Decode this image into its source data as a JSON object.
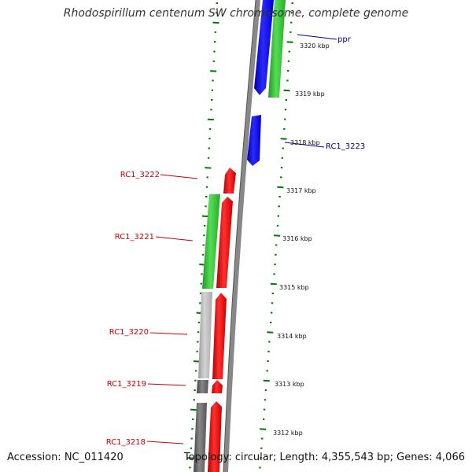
{
  "title": "Rhodospirillum centenum SW chromosome, complete genome",
  "accession": "Accession: NC_011420",
  "topology": "Topology: circular; Length: 4,355,543 bp; Genes: 4,066",
  "colors": {
    "forward_gene": "#ff0000",
    "reverse_gene": "#0000ff",
    "cds_green": "#33cc33",
    "cds_grey": "#bbbbbb",
    "cds_dark": "#666666",
    "backbone": "#888888",
    "tick": "#007a00",
    "label_red": "#cc0000",
    "label_blue": "#000099"
  },
  "scale_labels": [
    "3320 kbp",
    "3319 kbp",
    "3318 kbp",
    "3317 kbp",
    "3316 kbp",
    "3315 kbp",
    "3314 kbp",
    "3313 kbp",
    "3312 kbp"
  ],
  "gene_labels": [
    {
      "text": "ppr",
      "strand": "reverse"
    },
    {
      "text": "RC1_3223",
      "strand": "reverse"
    },
    {
      "text": "RC1_3222",
      "strand": "forward"
    },
    {
      "text": "RC1_3221",
      "strand": "forward"
    },
    {
      "text": "RC1_3220",
      "strand": "forward"
    },
    {
      "text": "RC1_3219",
      "strand": "forward"
    },
    {
      "text": "RC1_3218",
      "strand": "forward"
    }
  ]
}
